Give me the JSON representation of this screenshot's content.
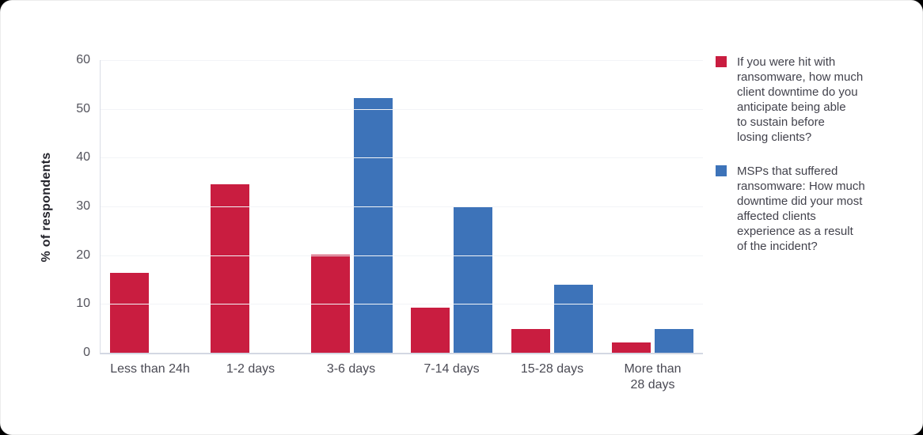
{
  "chart_data": {
    "type": "bar",
    "title": "",
    "xlabel": "",
    "ylabel": "% of respondents",
    "ylim": [
      0,
      60
    ],
    "ytick_step": 10,
    "grid": true,
    "legend_position": "right",
    "categories": [
      "Less than 24h",
      "1-2 days",
      "3-6 days",
      "7-14 days",
      "15-28 days",
      "More than\n28 days"
    ],
    "series": [
      {
        "name": "If you were hit with\nransomware, how much\nclient downtime do you\nanticipate being able\nto sustain before\nlosing clients?",
        "color": "#c91d40",
        "values": [
          16.4,
          34.6,
          20.1,
          9.3,
          4.8,
          2.1
        ]
      },
      {
        "name": "MSPs that suffered\nransomware: How much\ndowntime did your most\naffected clients\nexperience as a result\nof the incident?",
        "color": "#3d73b9",
        "values": [
          null,
          null,
          52.2,
          30,
          13.9,
          4.8
        ]
      }
    ]
  },
  "colors": {
    "background": "#ffffff",
    "axis_line": "#d3d8e3",
    "gridline": "#f2f4f7",
    "tick_text": "#53535c",
    "label_text": "#4a4a54",
    "legend_text": "#42424c"
  }
}
